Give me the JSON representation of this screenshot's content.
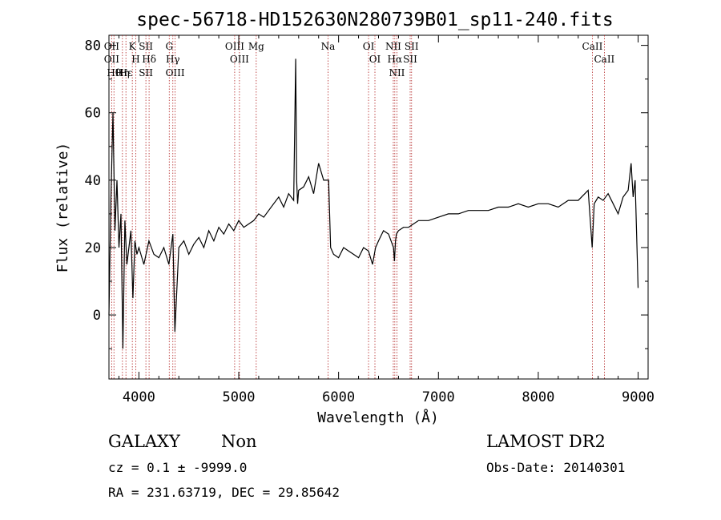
{
  "chart_data": {
    "type": "line",
    "title": "spec-56718-HD152630N280739B01_sp11-240.fits",
    "xlabel": "Wavelength (Å)",
    "ylabel": "Flux (relative)",
    "xlim": [
      3700,
      9100
    ],
    "ylim": [
      -19,
      83
    ],
    "xticks": [
      4000,
      5000,
      6000,
      7000,
      8000,
      9000
    ],
    "yticks": [
      0,
      20,
      40,
      60,
      80
    ],
    "grid": false,
    "series": [
      {
        "x": [
          3700,
          3720,
          3740,
          3760,
          3780,
          3800,
          3820,
          3840,
          3860,
          3880,
          3900,
          3920,
          3940,
          3960,
          3980,
          4000,
          4050,
          4100,
          4150,
          4200,
          4250,
          4300,
          4340,
          4360,
          4400,
          4450,
          4500,
          4550,
          4600,
          4650,
          4700,
          4750,
          4800,
          4850,
          4900,
          4950,
          5000,
          5050,
          5100,
          5150,
          5200,
          5250,
          5300,
          5350,
          5400,
          5450,
          5500,
          5550,
          5570,
          5580,
          5590,
          5600,
          5650,
          5700,
          5750,
          5800,
          5850,
          5900,
          5920,
          5950,
          6000,
          6050,
          6100,
          6150,
          6200,
          6250,
          6300,
          6340,
          6370,
          6400,
          6450,
          6500,
          6550,
          6560,
          6570,
          6580,
          6600,
          6650,
          6700,
          6750,
          6800,
          6900,
          7000,
          7100,
          7200,
          7300,
          7400,
          7500,
          7600,
          7700,
          7800,
          7900,
          8000,
          8100,
          8200,
          8300,
          8400,
          8500,
          8540,
          8560,
          8600,
          8650,
          8700,
          8750,
          8800,
          8850,
          8900,
          8930,
          8950,
          8970,
          9000
        ],
        "y": [
          0,
          35,
          60,
          25,
          40,
          20,
          30,
          -10,
          28,
          15,
          20,
          25,
          5,
          22,
          18,
          20,
          15,
          22,
          18,
          17,
          20,
          15,
          24,
          -5,
          20,
          22,
          18,
          21,
          23,
          20,
          25,
          22,
          26,
          24,
          27,
          25,
          28,
          26,
          27,
          28,
          30,
          29,
          31,
          33,
          35,
          32,
          36,
          34,
          76,
          40,
          33,
          37,
          38,
          41,
          36,
          45,
          40,
          40,
          20,
          18,
          17,
          20,
          19,
          18,
          17,
          20,
          19,
          15,
          20,
          22,
          25,
          24,
          20,
          16,
          22,
          24,
          25,
          26,
          26,
          27,
          28,
          28,
          29,
          30,
          30,
          31,
          31,
          31,
          32,
          32,
          33,
          32,
          33,
          33,
          32,
          34,
          34,
          37,
          20,
          33,
          35,
          34,
          36,
          33,
          30,
          35,
          37,
          45,
          35,
          40,
          8
        ]
      }
    ],
    "lines": [
      {
        "x": 3727,
        "labels": [
          "OII",
          "OII"
        ]
      },
      {
        "x": 3750,
        "labels": [
          "Hθ"
        ]
      },
      {
        "x": 3835,
        "labels": [
          "Hη"
        ]
      },
      {
        "x": 3870,
        "labels": [
          "Hε"
        ]
      },
      {
        "x": 3934,
        "labels": [
          "K"
        ]
      },
      {
        "x": 3969,
        "labels": [
          "H"
        ]
      },
      {
        "x": 4070,
        "labels": [
          "SII",
          "SII"
        ]
      },
      {
        "x": 4102,
        "labels": [
          "Hδ"
        ]
      },
      {
        "x": 4304,
        "labels": [
          "G"
        ]
      },
      {
        "x": 4340,
        "labels": [
          "Hγ"
        ]
      },
      {
        "x": 4363,
        "labels": [
          "OIII"
        ]
      },
      {
        "x": 4959,
        "labels": [
          "OIII"
        ]
      },
      {
        "x": 5007,
        "labels": [
          "OIII"
        ]
      },
      {
        "x": 5175,
        "labels": [
          "Mg"
        ]
      },
      {
        "x": 5894,
        "labels": [
          "Na"
        ]
      },
      {
        "x": 6300,
        "labels": [
          "OI"
        ]
      },
      {
        "x": 6364,
        "labels": [
          "OI"
        ]
      },
      {
        "x": 6548,
        "labels": [
          "NII"
        ]
      },
      {
        "x": 6563,
        "labels": [
          "Hα"
        ]
      },
      {
        "x": 6584,
        "labels": [
          "NII"
        ]
      },
      {
        "x": 6717,
        "labels": [
          "SII"
        ]
      },
      {
        "x": 6731,
        "labels": [
          "SII"
        ]
      },
      {
        "x": 8542,
        "labels": [
          "CaII"
        ]
      },
      {
        "x": 8662,
        "labels": [
          "CaII"
        ]
      }
    ]
  },
  "info": {
    "class": "GALAXY",
    "subclass": "Non",
    "survey": "LAMOST DR2",
    "cz": "cz = 0.1 ± -9999.0",
    "obsdate": "Obs-Date: 20140301",
    "radec": "RA = 231.63719, DEC =  29.85642"
  }
}
